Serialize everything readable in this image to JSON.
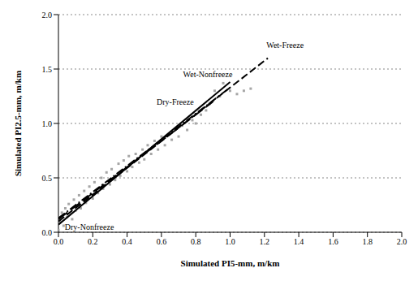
{
  "chart_data": {
    "type": "scatter",
    "x_label": "Simulated PI5-mm, m/km",
    "y_label": "Simulated PI2.5-mm, m/km",
    "xlim": [
      0,
      2
    ],
    "xticks": [
      {
        "value": 0,
        "label": "0.0"
      },
      0.2,
      0.4,
      0.6,
      0.8,
      {
        "value": 1,
        "label": "1.0"
      },
      1.2,
      1.4,
      1.6,
      1.8,
      {
        "value": 2,
        "label": "2.0"
      }
    ],
    "ylim": [
      0,
      2
    ],
    "yticks": [
      {
        "value": 0,
        "label": "0.0"
      },
      0.5,
      {
        "value": 1,
        "label": "1.0"
      },
      1.5,
      {
        "value": 2,
        "label": "2.0"
      }
    ],
    "grid": "y",
    "series": [
      {
        "type": "scatter",
        "color": "#a6a6a6",
        "marker": "square",
        "x": [
          0.0,
          0.01,
          0.02,
          0.03,
          0.04,
          0.05,
          0.06,
          0.08,
          0.09,
          0.1,
          0.12,
          0.13,
          0.15,
          0.16,
          0.18,
          0.2,
          0.21,
          0.23,
          0.25,
          0.26,
          0.28,
          0.3,
          0.31,
          0.33,
          0.35,
          0.36,
          0.38,
          0.4,
          0.41,
          0.43,
          0.45,
          0.47,
          0.49,
          0.5,
          0.52,
          0.54,
          0.56,
          0.58,
          0.6,
          0.62,
          0.64,
          0.66,
          0.68,
          0.7,
          0.72,
          0.75,
          0.78,
          0.8,
          0.83,
          0.86,
          0.88,
          0.91,
          0.94,
          0.96,
          1.0,
          1.04,
          1.08,
          1.12
        ],
        "values": [
          0.02,
          0.1,
          0.18,
          0.06,
          0.22,
          0.14,
          0.26,
          0.12,
          0.3,
          0.2,
          0.34,
          0.22,
          0.38,
          0.27,
          0.42,
          0.31,
          0.46,
          0.36,
          0.5,
          0.4,
          0.55,
          0.44,
          0.58,
          0.48,
          0.63,
          0.52,
          0.66,
          0.56,
          0.7,
          0.6,
          0.72,
          0.64,
          0.76,
          0.67,
          0.8,
          0.72,
          0.84,
          0.76,
          0.88,
          0.8,
          0.9,
          0.85,
          0.95,
          0.88,
          0.98,
          0.94,
          1.03,
          1.0,
          1.08,
          1.12,
          1.18,
          1.3,
          1.25,
          1.37,
          1.3,
          1.27,
          1.3,
          1.32
        ]
      },
      {
        "type": "line",
        "color": "#000000",
        "line_style": "dashed",
        "x": [
          0,
          1.22
        ],
        "values": [
          0.1,
          1.6
        ]
      },
      {
        "type": "line",
        "color": "#000000",
        "line_style": "solid",
        "x": [
          0,
          1.0
        ],
        "values": [
          0.07,
          1.38
        ]
      },
      {
        "type": "line",
        "color": "#000000",
        "line_style": "dashdot",
        "x": [
          0,
          1.0
        ],
        "values": [
          0.13,
          1.33
        ]
      },
      {
        "type": "line",
        "color": "#000000",
        "line_style": "longdash",
        "x": [
          0,
          0.9
        ],
        "values": [
          0.12,
          1.2
        ]
      }
    ],
    "annotations": [
      {
        "text": "Wet-Freeze",
        "x": 1.32,
        "y": 1.72
      },
      {
        "text": "Wet-Nonfreeze",
        "x": 0.87,
        "y": 1.45
      },
      {
        "text": "Dry-Freeze",
        "x": 0.68,
        "y": 1.2
      },
      {
        "text": "Dry-Nonfreeze",
        "x": 0.18,
        "y": 0.05
      }
    ]
  }
}
